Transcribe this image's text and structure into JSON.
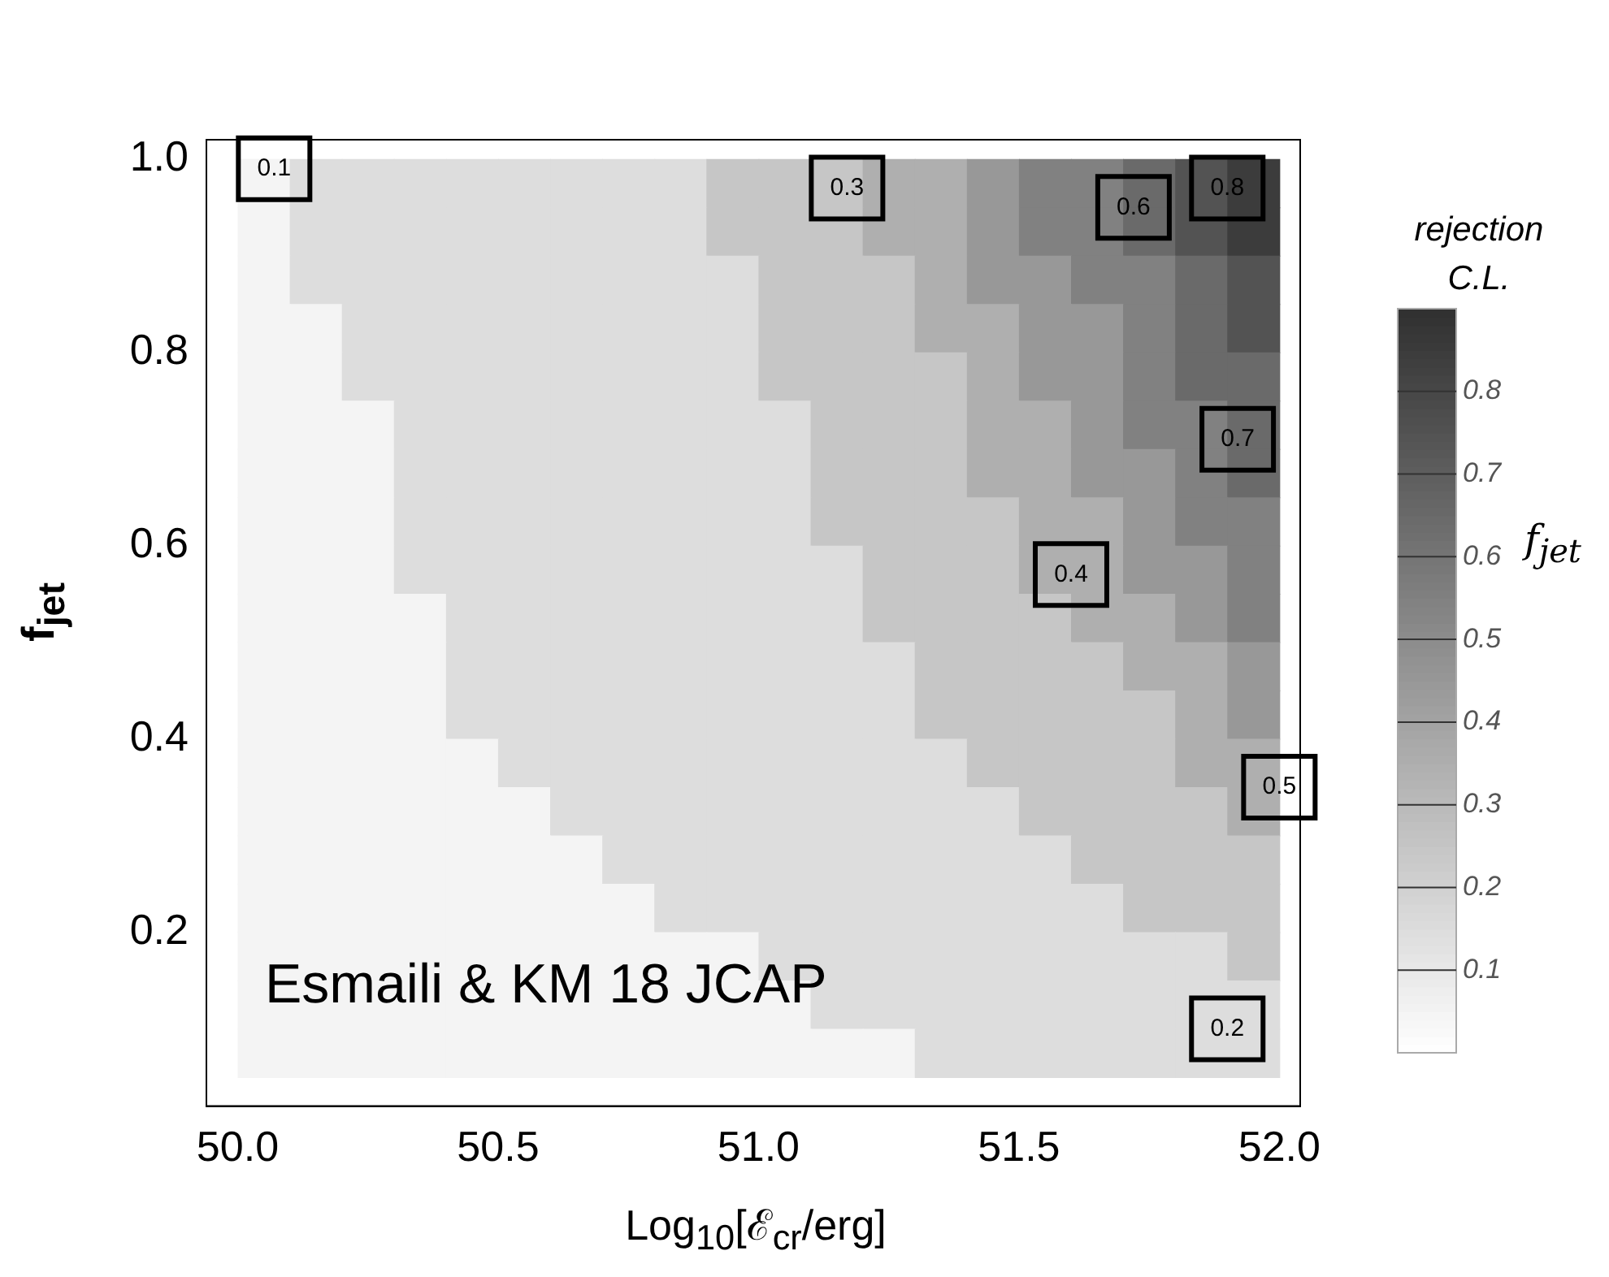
{
  "chart_data": {
    "type": "heatmap",
    "xlabel": "Log$_{10}$[ℰ$_{cr}$/erg]",
    "ylabel": "f$_{jet}$",
    "clabel": "rejection C.L.",
    "x": [
      50.05,
      50.15,
      50.25,
      50.35,
      50.45,
      50.55,
      50.65,
      50.75,
      50.85,
      50.95,
      51.05,
      51.15,
      51.25,
      51.35,
      51.45,
      51.55,
      51.65,
      51.75,
      51.85,
      51.95
    ],
    "y": [
      0.975,
      0.925,
      0.875,
      0.825,
      0.775,
      0.725,
      0.675,
      0.625,
      0.575,
      0.525,
      0.475,
      0.425,
      0.375,
      0.325,
      0.275,
      0.225,
      0.175,
      0.125,
      0.075
    ],
    "cells": [
      [
        0.05,
        0.15,
        0.15,
        0.15,
        0.15,
        0.15,
        0.15,
        0.15,
        0.15,
        0.25,
        0.25,
        0.25,
        0.35,
        0.35,
        0.45,
        0.55,
        0.55,
        0.65,
        0.75,
        0.85
      ],
      [
        0.05,
        0.15,
        0.15,
        0.15,
        0.15,
        0.15,
        0.15,
        0.15,
        0.15,
        0.25,
        0.25,
        0.25,
        0.35,
        0.35,
        0.45,
        0.55,
        0.55,
        0.65,
        0.75,
        0.85
      ],
      [
        0.05,
        0.15,
        0.15,
        0.15,
        0.15,
        0.15,
        0.15,
        0.15,
        0.15,
        0.15,
        0.25,
        0.25,
        0.25,
        0.35,
        0.45,
        0.45,
        0.55,
        0.55,
        0.65,
        0.75
      ],
      [
        0.05,
        0.05,
        0.15,
        0.15,
        0.15,
        0.15,
        0.15,
        0.15,
        0.15,
        0.15,
        0.25,
        0.25,
        0.25,
        0.35,
        0.35,
        0.45,
        0.45,
        0.55,
        0.65,
        0.75
      ],
      [
        0.05,
        0.05,
        0.15,
        0.15,
        0.15,
        0.15,
        0.15,
        0.15,
        0.15,
        0.15,
        0.25,
        0.25,
        0.25,
        0.25,
        0.35,
        0.45,
        0.45,
        0.55,
        0.65,
        0.65
      ],
      [
        0.05,
        0.05,
        0.05,
        0.15,
        0.15,
        0.15,
        0.15,
        0.15,
        0.15,
        0.15,
        0.15,
        0.25,
        0.25,
        0.25,
        0.35,
        0.35,
        0.45,
        0.55,
        0.55,
        0.65
      ],
      [
        0.05,
        0.05,
        0.05,
        0.15,
        0.15,
        0.15,
        0.15,
        0.15,
        0.15,
        0.15,
        0.15,
        0.25,
        0.25,
        0.25,
        0.35,
        0.35,
        0.45,
        0.45,
        0.55,
        0.65
      ],
      [
        0.05,
        0.05,
        0.05,
        0.15,
        0.15,
        0.15,
        0.15,
        0.15,
        0.15,
        0.15,
        0.15,
        0.25,
        0.25,
        0.25,
        0.25,
        0.35,
        0.35,
        0.45,
        0.55,
        0.55
      ],
      [
        0.05,
        0.05,
        0.05,
        0.15,
        0.15,
        0.15,
        0.15,
        0.15,
        0.15,
        0.15,
        0.15,
        0.15,
        0.25,
        0.25,
        0.25,
        0.35,
        0.35,
        0.45,
        0.45,
        0.55
      ],
      [
        0.05,
        0.05,
        0.05,
        0.05,
        0.15,
        0.15,
        0.15,
        0.15,
        0.15,
        0.15,
        0.15,
        0.15,
        0.25,
        0.25,
        0.25,
        0.25,
        0.35,
        0.35,
        0.45,
        0.55
      ],
      [
        0.05,
        0.05,
        0.05,
        0.05,
        0.15,
        0.15,
        0.15,
        0.15,
        0.15,
        0.15,
        0.15,
        0.15,
        0.15,
        0.25,
        0.25,
        0.25,
        0.25,
        0.35,
        0.35,
        0.45
      ],
      [
        0.05,
        0.05,
        0.05,
        0.05,
        0.15,
        0.15,
        0.15,
        0.15,
        0.15,
        0.15,
        0.15,
        0.15,
        0.15,
        0.25,
        0.25,
        0.25,
        0.25,
        0.25,
        0.35,
        0.45
      ],
      [
        0.05,
        0.05,
        0.05,
        0.05,
        0.05,
        0.15,
        0.15,
        0.15,
        0.15,
        0.15,
        0.15,
        0.15,
        0.15,
        0.15,
        0.25,
        0.25,
        0.25,
        0.25,
        0.35,
        0.35
      ],
      [
        0.05,
        0.05,
        0.05,
        0.05,
        0.05,
        0.05,
        0.15,
        0.15,
        0.15,
        0.15,
        0.15,
        0.15,
        0.15,
        0.15,
        0.15,
        0.25,
        0.25,
        0.25,
        0.25,
        0.35
      ],
      [
        0.05,
        0.05,
        0.05,
        0.05,
        0.05,
        0.05,
        0.05,
        0.15,
        0.15,
        0.15,
        0.15,
        0.15,
        0.15,
        0.15,
        0.15,
        0.15,
        0.25,
        0.25,
        0.25,
        0.25
      ],
      [
        0.05,
        0.05,
        0.05,
        0.05,
        0.05,
        0.05,
        0.05,
        0.05,
        0.15,
        0.15,
        0.15,
        0.15,
        0.15,
        0.15,
        0.15,
        0.15,
        0.15,
        0.25,
        0.25,
        0.25
      ],
      [
        0.05,
        0.05,
        0.05,
        0.05,
        0.05,
        0.05,
        0.05,
        0.05,
        0.05,
        0.05,
        0.15,
        0.15,
        0.15,
        0.15,
        0.15,
        0.15,
        0.15,
        0.15,
        0.15,
        0.25
      ],
      [
        0.05,
        0.05,
        0.05,
        0.05,
        0.05,
        0.05,
        0.05,
        0.05,
        0.05,
        0.05,
        0.05,
        0.15,
        0.15,
        0.15,
        0.15,
        0.15,
        0.15,
        0.15,
        0.15,
        0.15
      ],
      [
        0.05,
        0.05,
        0.05,
        0.05,
        0.05,
        0.05,
        0.05,
        0.05,
        0.05,
        0.05,
        0.05,
        0.05,
        0.05,
        0.15,
        0.15,
        0.15,
        0.15,
        0.15,
        0.15,
        0.15
      ]
    ],
    "clim": [
      0,
      0.9
    ],
    "cticks": [
      0.1,
      0.2,
      0.3,
      0.4,
      0.5,
      0.6,
      0.7,
      0.8
    ],
    "xlim": [
      49.94,
      52.04
    ],
    "xticks": [
      {
        "value": 50,
        "label": "50.0"
      },
      50.5,
      {
        "value": 51,
        "label": "51.0"
      },
      51.5,
      {
        "value": 52,
        "label": "52.0"
      }
    ],
    "ylim": [
      0.02,
      1.02
    ],
    "yticks": [
      0.2,
      0.4,
      0.6,
      0.8,
      {
        "value": 1,
        "label": "1.0"
      }
    ],
    "grid": false,
    "annotations": [
      "0.1",
      "0.2",
      "0.3",
      "0.4",
      "0.5",
      "0.6",
      "0.7",
      "0.8",
      "Esmaili & KM 18 JCAP",
      "f$_{jet}$"
    ]
  }
}
